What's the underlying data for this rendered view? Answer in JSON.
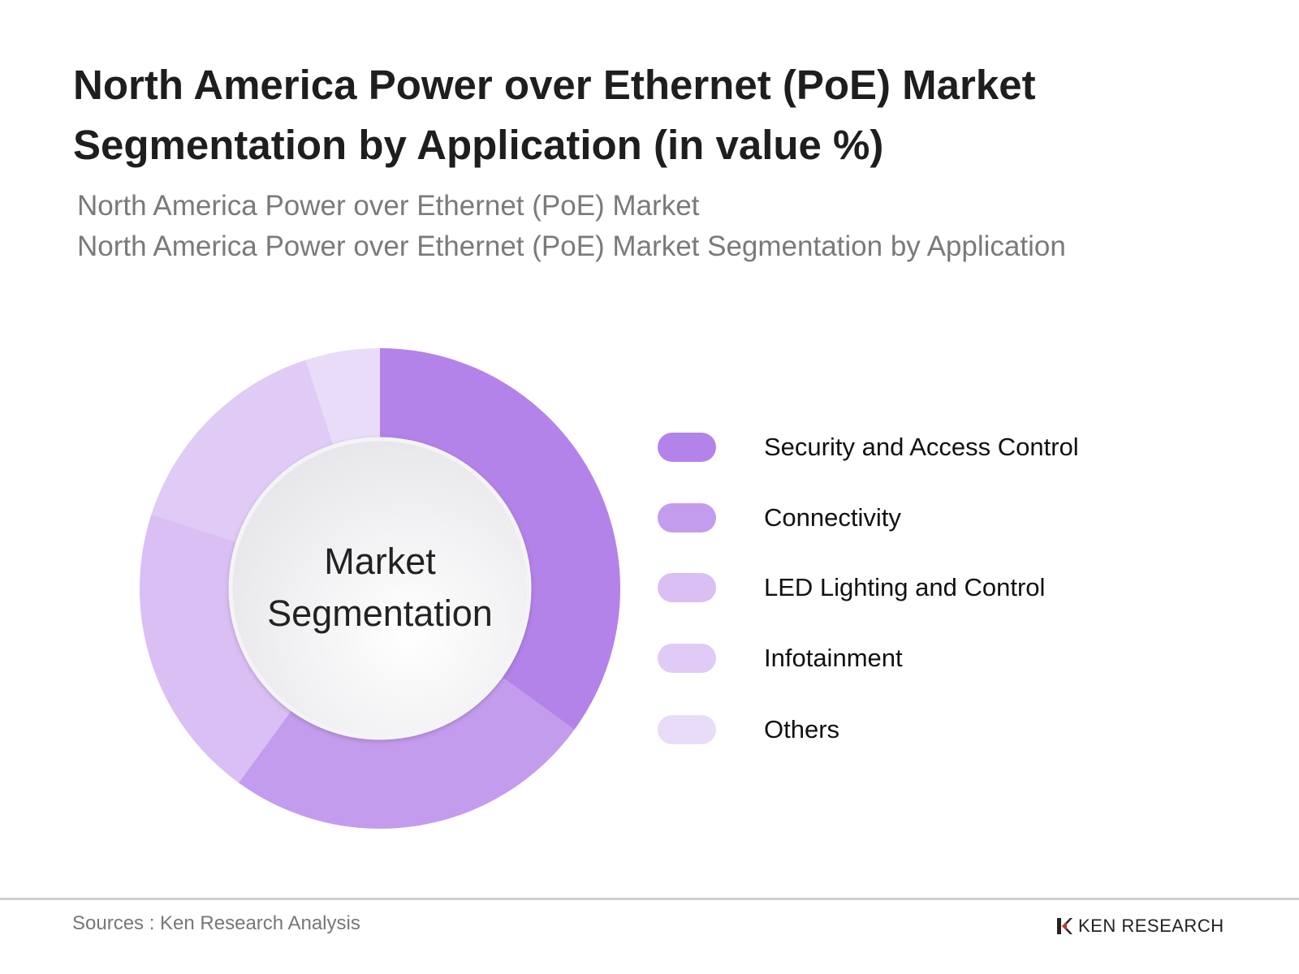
{
  "title": "North America Power over Ethernet (PoE) Market Segmentation by Application (in value %)",
  "subtitle_1": "North America Power over Ethernet (PoE) Market",
  "subtitle_2": "North America Power over Ethernet (PoE) Market Segmentation by Application",
  "chart_data": {
    "type": "pie",
    "variant": "donut",
    "center_label": "Market Segmentation",
    "categories": [
      "Security and Access Control",
      "Connectivity",
      "LED Lighting and Control",
      "Infotainment",
      "Others"
    ],
    "values": [
      35,
      25,
      20,
      15,
      5
    ],
    "colors": [
      "#b383ea",
      "#c49cee",
      "#dabff5",
      "#e0cbf6",
      "#e9dcf8"
    ],
    "legend_position": "right",
    "start": "top, clockwise"
  },
  "footer": {
    "source": "Sources : Ken Research Analysis",
    "logo_text": "KEN RESEARCH"
  }
}
